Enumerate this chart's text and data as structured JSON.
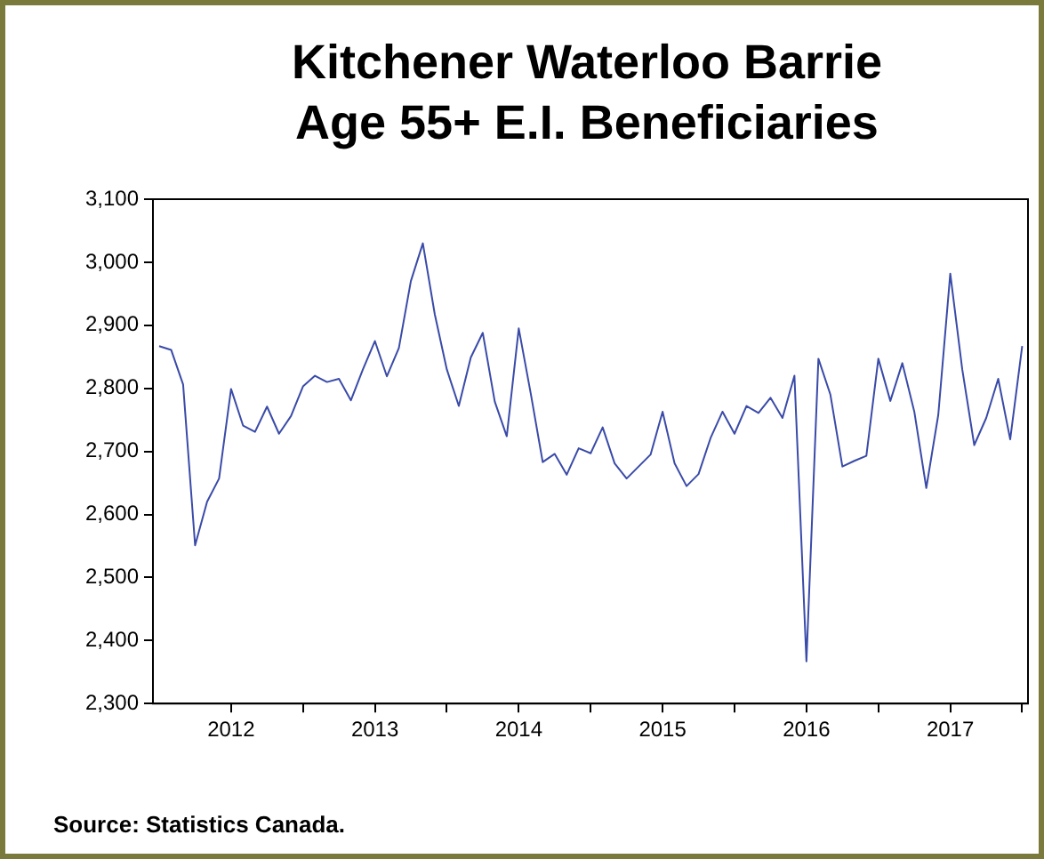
{
  "chart_data": {
    "type": "line",
    "title": "Kitchener Waterloo Barrie Age 55+ E.I. Beneficiaries",
    "x": [
      "2012-01",
      "2012-02",
      "2012-03",
      "2012-04",
      "2012-05",
      "2012-06",
      "2012-07",
      "2012-08",
      "2012-09",
      "2012-10",
      "2012-11",
      "2012-12",
      "2013-01",
      "2013-02",
      "2013-03",
      "2013-04",
      "2013-05",
      "2013-06",
      "2013-07",
      "2013-08",
      "2013-09",
      "2013-10",
      "2013-11",
      "2013-12",
      "2014-01",
      "2014-02",
      "2014-03",
      "2014-04",
      "2014-05",
      "2014-06",
      "2014-07",
      "2014-08",
      "2014-09",
      "2014-10",
      "2014-11",
      "2014-12",
      "2015-01",
      "2015-02",
      "2015-03",
      "2015-04",
      "2015-05",
      "2015-06",
      "2015-07",
      "2015-08",
      "2015-09",
      "2015-10",
      "2015-11",
      "2015-12",
      "2016-01",
      "2016-02",
      "2016-03",
      "2016-04",
      "2016-05",
      "2016-06",
      "2016-07",
      "2016-08",
      "2016-09",
      "2016-10",
      "2016-11",
      "2016-12",
      "2017-01",
      "2017-02",
      "2017-03",
      "2017-04",
      "2017-05",
      "2017-06",
      "2017-07",
      "2017-08",
      "2017-09",
      "2017-10",
      "2017-11",
      "2017-12",
      "2018-01"
    ],
    "series": [
      {
        "color": "#3a4ba8",
        "values": [
          2867,
          2861,
          2806,
          2551,
          2620,
          2657,
          2799,
          2741,
          2731,
          2771,
          2728,
          2756,
          2803,
          2820,
          2810,
          2815,
          2781,
          2830,
          2875,
          2819,
          2864,
          2970,
          3030,
          2917,
          2830,
          2772,
          2849,
          2888,
          2779,
          2724,
          2895,
          2792,
          2683,
          2696,
          2663,
          2705,
          2697,
          2738,
          2681,
          2657,
          2676,
          2695,
          2763,
          2681,
          2645,
          2664,
          2721,
          2763,
          2728,
          2772,
          2761,
          2785,
          2753,
          2820,
          2367,
          2847,
          2790,
          2676,
          2685,
          2693,
          2847,
          2780,
          2840,
          2763,
          2642,
          2758,
          2982,
          2830,
          2710,
          2753,
          2815,
          2719,
          2867
        ]
      }
    ],
    "xlim": [
      "2011-12-16",
      "2018-01-16"
    ],
    "xticks": [
      {
        "value": "2012-07",
        "label": "2012"
      },
      {
        "value": "2013-07",
        "label": "2013"
      },
      {
        "value": "2014-07",
        "label": "2014"
      },
      {
        "value": "2015-07",
        "label": "2015"
      },
      {
        "value": "2016-07",
        "label": "2016"
      },
      {
        "value": "2017-07",
        "label": "2017"
      },
      {
        "value": "2013-01",
        "label": null
      },
      {
        "value": "2014-01",
        "label": null
      },
      {
        "value": "2015-01",
        "label": null
      },
      {
        "value": "2016-01",
        "label": null
      },
      {
        "value": "2017-01",
        "label": null
      },
      {
        "value": "2018-01",
        "label": null
      }
    ],
    "ylim": [
      2300,
      3100
    ],
    "yticks": [
      {
        "value": 2300,
        "label": "2,300"
      },
      {
        "value": 2400,
        "label": "2,400"
      },
      {
        "value": 2500,
        "label": "2,500"
      },
      {
        "value": 2600,
        "label": "2,600"
      },
      {
        "value": 2700,
        "label": "2,700"
      },
      {
        "value": 2800,
        "label": "2,800"
      },
      {
        "value": 2900,
        "label": "2,900"
      },
      {
        "value": 3000,
        "label": "3,000"
      },
      {
        "value": 3100,
        "label": "3,100"
      }
    ],
    "grid": false,
    "legend": false,
    "marker": "none",
    "line_style": "solid",
    "annotations": [
      "Source: Statistics Canada."
    ]
  }
}
